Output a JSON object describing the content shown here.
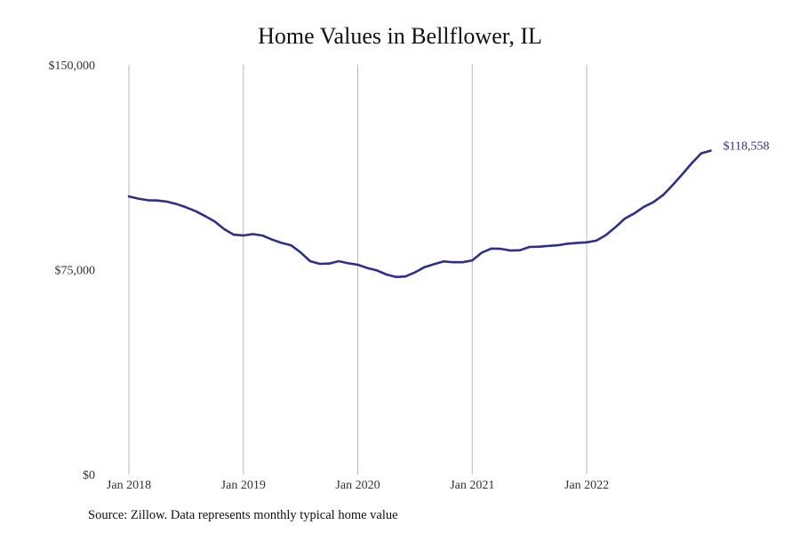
{
  "chart_data": {
    "type": "line",
    "title": "Home Values in Bellflower, IL",
    "xlabel": "",
    "ylabel": "",
    "ylim": [
      0,
      150000
    ],
    "y_ticks": [
      {
        "value": 0,
        "label": "$0"
      },
      {
        "value": 75000,
        "label": "$75,000"
      },
      {
        "value": 150000,
        "label": "$150,000"
      }
    ],
    "x_ticks": [
      "Jan 2018",
      "Jan 2019",
      "Jan 2020",
      "Jan 2021",
      "Jan 2022"
    ],
    "grid": "vertical",
    "line_color": "#2e2e8f",
    "end_label": "$118,558",
    "series": [
      {
        "x_start": "Jan 2018",
        "interval": "monthly",
        "values": [
          101800,
          101000,
          100400,
          100300,
          99900,
          99000,
          97800,
          96400,
          94600,
          92600,
          89800,
          87800,
          87500,
          88000,
          87500,
          86000,
          84800,
          83900,
          81300,
          78100,
          77100,
          77200,
          78100,
          77300,
          76800,
          75600,
          74700,
          73200,
          72300,
          72500,
          74000,
          75900,
          77000,
          78000,
          77700,
          77700,
          78400,
          81200,
          82700,
          82600,
          82000,
          82100,
          83300,
          83400,
          83700,
          83900,
          84500,
          84800,
          85000,
          85600,
          87600,
          90500,
          93700,
          95600,
          98000,
          99700,
          102300,
          105900,
          109800,
          113900,
          117600,
          118558
        ]
      }
    ]
  },
  "source": "Source: Zillow. Data represents monthly typical home value"
}
